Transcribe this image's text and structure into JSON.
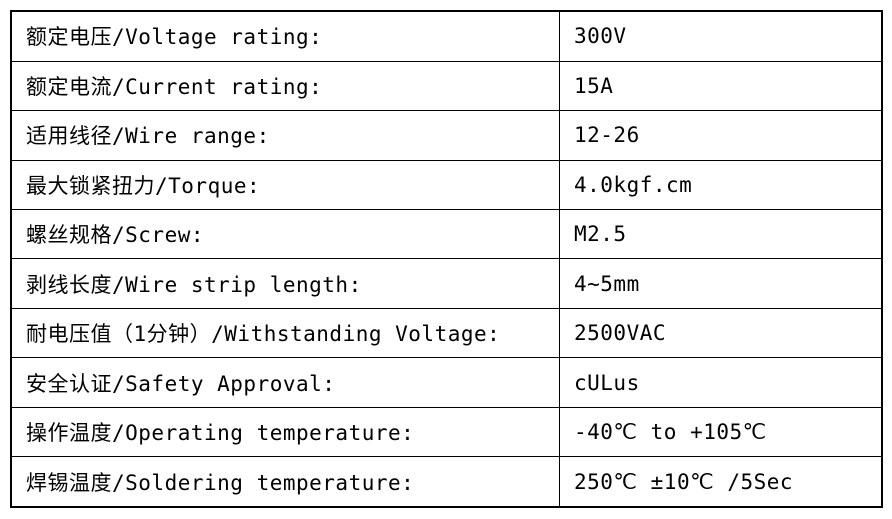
{
  "table": {
    "colors": {
      "border": "#000000",
      "text": "#000000",
      "background": "#ffffff"
    },
    "rows": [
      {
        "label": "额定电压/Voltage rating:",
        "value": "300V"
      },
      {
        "label": "额定电流/Current rating:",
        "value": "15A"
      },
      {
        "label": "适用线径/Wire range:",
        "value": "12-26"
      },
      {
        "label": "最大锁紧扭力/Torque:",
        "value": "4.0kgf.cm"
      },
      {
        "label": "螺丝规格/Screw:",
        "value": "M2.5"
      },
      {
        "label": "剥线长度/Wire strip length:",
        "value": "4~5mm"
      },
      {
        "label": "耐电压值（1分钟）/Withstanding Voltage:",
        "value": "2500VAC"
      },
      {
        "label": "安全认证/Safety Approval:",
        "value": "cULus"
      },
      {
        "label": "操作温度/Operating temperature:",
        "value": "-40℃ to +105℃"
      },
      {
        "label": "焊锡温度/Soldering temperature:",
        "value": "250℃ ±10℃ /5Sec"
      }
    ]
  }
}
